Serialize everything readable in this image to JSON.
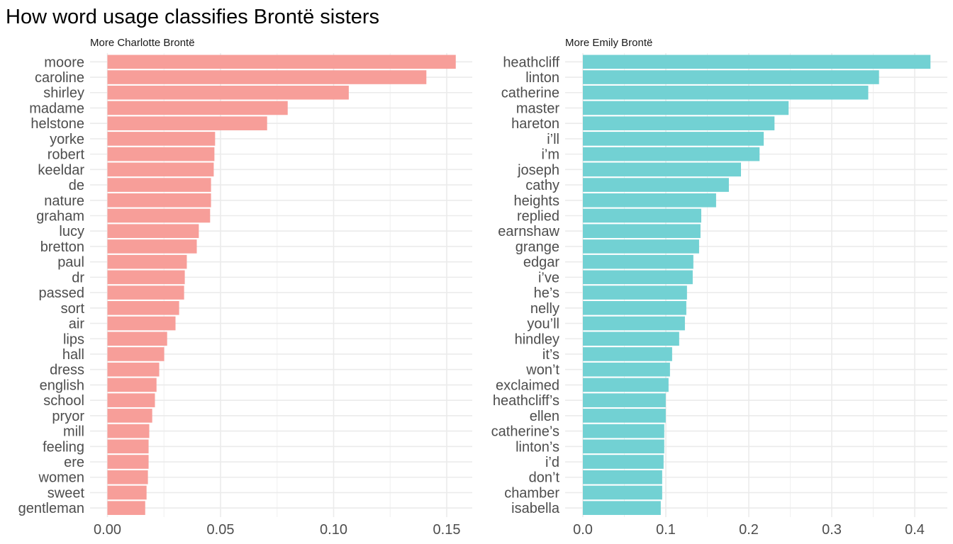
{
  "chart_data": [
    {
      "type": "bar",
      "orientation": "horizontal",
      "title": "How word usage classifies Brontë sisters",
      "panel_label": "More Charlotte Brontë",
      "xlabel": "",
      "ylabel": "",
      "xlim": [
        0,
        0.16
      ],
      "x_ticks": [
        0.0,
        0.05,
        0.1,
        0.15
      ],
      "x_tick_labels": [
        "0.00",
        "0.05",
        "0.10",
        "0.15"
      ],
      "grid": true,
      "color": "#F8766D",
      "bar_color": "#F79E99",
      "categories": [
        "moore",
        "caroline",
        "shirley",
        "madame",
        "helstone",
        "yorke",
        "robert",
        "keeldar",
        "de",
        "nature",
        "graham",
        "lucy",
        "bretton",
        "paul",
        "dr",
        "passed",
        "sort",
        "air",
        "lips",
        "hall",
        "dress",
        "english",
        "school",
        "pryor",
        "mill",
        "feeling",
        "ere",
        "women",
        "sweet",
        "gentleman"
      ],
      "values": [
        0.154,
        0.141,
        0.1067,
        0.0797,
        0.0706,
        0.0476,
        0.0473,
        0.047,
        0.0458,
        0.0458,
        0.0454,
        0.0404,
        0.0395,
        0.0351,
        0.0342,
        0.0339,
        0.0317,
        0.0301,
        0.0264,
        0.0251,
        0.0229,
        0.0217,
        0.021,
        0.0198,
        0.0185,
        0.0182,
        0.0182,
        0.0179,
        0.0173,
        0.0167
      ]
    },
    {
      "type": "bar",
      "orientation": "horizontal",
      "title": "How word usage classifies Brontë sisters",
      "panel_label": "More Emily Brontë",
      "xlabel": "",
      "ylabel": "",
      "xlim": [
        0,
        0.44
      ],
      "x_ticks": [
        0.0,
        0.1,
        0.2,
        0.3,
        0.4
      ],
      "x_tick_labels": [
        "0.0",
        "0.1",
        "0.2",
        "0.3",
        "0.4"
      ],
      "grid": true,
      "color": "#00BFC4",
      "bar_color": "#72D1D3",
      "categories": [
        "heathcliff",
        "linton",
        "catherine",
        "master",
        "hareton",
        "i’ll",
        "i’m",
        "joseph",
        "cathy",
        "heights",
        "replied",
        "earnshaw",
        "grange",
        "edgar",
        "i’ve",
        "he’s",
        "nelly",
        "you’ll",
        "hindley",
        "it’s",
        "won’t",
        "exclaimed",
        "heathcliff’s",
        "ellen",
        "catherine’s",
        "linton’s",
        "i’d",
        "don’t",
        "chamber",
        "isabella"
      ],
      "values": [
        0.419,
        0.357,
        0.344,
        0.248,
        0.231,
        0.218,
        0.213,
        0.1906,
        0.176,
        0.1606,
        0.1427,
        0.1418,
        0.1401,
        0.1332,
        0.1324,
        0.1255,
        0.1247,
        0.123,
        0.1161,
        0.1076,
        0.105,
        0.1033,
        0.0999,
        0.0999,
        0.0981,
        0.0981,
        0.0973,
        0.0956,
        0.0956,
        0.0939
      ]
    }
  ]
}
